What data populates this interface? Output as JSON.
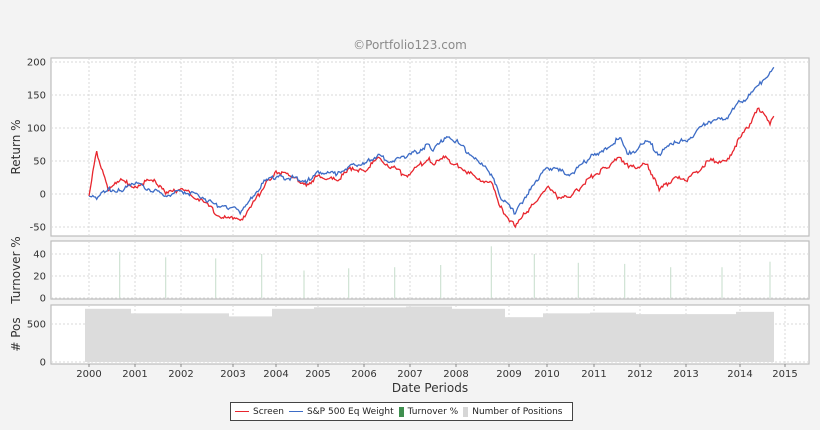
{
  "watermark": "©Portfolio123.com",
  "chart_data": [
    {
      "type": "line",
      "panel": "returns",
      "title": "©Portfolio123.com",
      "xlabel": "Date Periods",
      "ylabel": "Return %",
      "ylim": [
        -60,
        205
      ],
      "yticks": [
        -50,
        0,
        50,
        100,
        150,
        200
      ],
      "grid": true,
      "x": [
        "2000-01",
        "2000-03",
        "2000-06",
        "2000-09",
        "2001-01",
        "2001-06",
        "2001-09",
        "2002-01",
        "2002-06",
        "2002-10",
        "2003-01",
        "2003-03",
        "2003-06",
        "2003-10",
        "2004-01",
        "2004-06",
        "2004-10",
        "2005-01",
        "2005-06",
        "2005-10",
        "2006-01",
        "2006-05",
        "2006-07",
        "2006-12",
        "2007-06",
        "2007-07",
        "2007-10",
        "2008-01",
        "2008-06",
        "2008-09",
        "2008-11",
        "2009-03",
        "2009-06",
        "2009-10",
        "2010-01",
        "2010-04",
        "2010-07",
        "2010-12",
        "2011-04",
        "2011-08",
        "2011-10",
        "2012-03",
        "2012-06",
        "2012-10",
        "2013-01",
        "2013-06",
        "2013-10",
        "2014-01",
        "2014-03",
        "2014-06",
        "2014-09",
        "2014-10"
      ],
      "series": [
        {
          "name": "Screen",
          "color": "#e8262e",
          "values": [
            -3,
            65,
            5,
            20,
            12,
            22,
            0,
            8,
            -10,
            -35,
            -38,
            -40,
            -20,
            15,
            35,
            25,
            15,
            28,
            20,
            40,
            35,
            55,
            45,
            28,
            55,
            45,
            55,
            45,
            22,
            18,
            -20,
            -50,
            -30,
            -10,
            10,
            -5,
            -5,
            25,
            40,
            55,
            40,
            45,
            5,
            25,
            20,
            50,
            50,
            85,
            100,
            130,
            105,
            118
          ]
        },
        {
          "name": "S&P 500 Eq Weight",
          "color": "#3d6cc6",
          "values": [
            -3,
            -8,
            8,
            5,
            15,
            5,
            -3,
            5,
            -5,
            -20,
            -20,
            -30,
            -5,
            20,
            25,
            25,
            20,
            35,
            30,
            45,
            45,
            60,
            50,
            55,
            75,
            65,
            85,
            80,
            50,
            30,
            -5,
            -30,
            -5,
            20,
            40,
            35,
            30,
            55,
            70,
            85,
            60,
            80,
            60,
            80,
            80,
            110,
            115,
            140,
            145,
            165,
            185,
            192
          ]
        }
      ]
    },
    {
      "type": "bar",
      "panel": "turnover",
      "ylabel": "Turnover %",
      "ylim": [
        0,
        50
      ],
      "yticks": [
        0,
        20,
        40
      ],
      "series": [
        {
          "name": "Turnover %",
          "color": "#4a9a5a",
          "x": [
            "2000-09",
            "2001-09",
            "2002-09",
            "2003-09",
            "2004-09",
            "2005-09",
            "2006-09",
            "2007-09",
            "2008-09",
            "2009-09",
            "2010-09",
            "2011-09",
            "2012-09",
            "2013-09",
            "2014-09"
          ],
          "values": [
            42,
            37,
            36,
            40,
            25,
            27,
            28,
            30,
            47,
            40,
            32,
            31,
            28,
            28,
            33
          ]
        }
      ]
    },
    {
      "type": "bar",
      "panel": "positions",
      "ylabel": "# Pos",
      "ylim": [
        0,
        750
      ],
      "yticks": [
        0,
        500
      ],
      "series": [
        {
          "name": "Number of Positions",
          "color": "#dcdcdc",
          "x": [
            "2000",
            "2001",
            "2002",
            "2003",
            "2004",
            "2005",
            "2006",
            "2007",
            "2008",
            "2009",
            "2010",
            "2011",
            "2012",
            "2013",
            "2014"
          ],
          "values": [
            700,
            640,
            640,
            600,
            700,
            720,
            720,
            730,
            700,
            590,
            640,
            650,
            630,
            630,
            660
          ]
        }
      ]
    }
  ],
  "xaxis": {
    "label": "Date Periods",
    "ticks": [
      "2000",
      "2001",
      "2002",
      "2003",
      "2004",
      "2005",
      "2006",
      "2007",
      "2008",
      "2009",
      "2010",
      "2011",
      "2012",
      "2013",
      "2014",
      "2015"
    ]
  },
  "legend": {
    "items": [
      {
        "label": "Screen",
        "kind": "line",
        "color": "#e8262e"
      },
      {
        "label": "S&P 500 Eq Weight",
        "kind": "line",
        "color": "#3d6cc6"
      },
      {
        "label": "Turnover %",
        "kind": "box",
        "color": "#3f8f4f"
      },
      {
        "label": "Number of Positions",
        "kind": "box",
        "color": "#d6d6d6"
      }
    ]
  }
}
